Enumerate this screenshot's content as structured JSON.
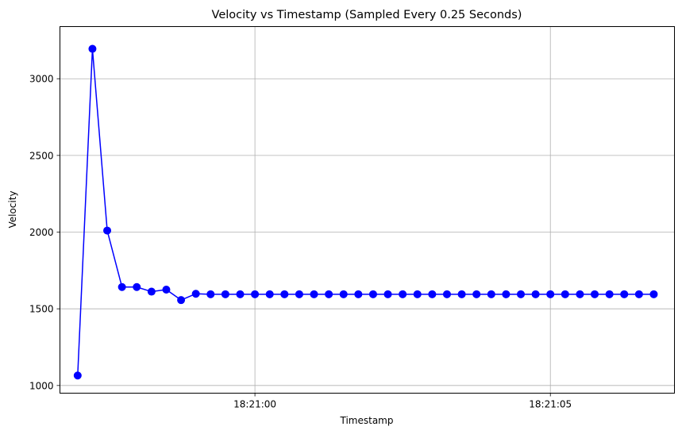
{
  "chart_data": {
    "type": "line",
    "title": "Velocity vs Timestamp (Sampled Every 0.25 Seconds)",
    "xlabel": "Timestamp",
    "ylabel": "Velocity",
    "grid": true,
    "xlim": [
      "18:20:56.70",
      "18:21:07.10"
    ],
    "ylim": [
      950,
      3340
    ],
    "x_ticks": [
      {
        "value": "18:21:00",
        "label": "18:21:00"
      },
      {
        "value": "18:21:05",
        "label": "18:21:05"
      }
    ],
    "y_ticks": [
      {
        "value": 1000,
        "label": "1000"
      },
      {
        "value": 1500,
        "label": "1500"
      },
      {
        "value": 2000,
        "label": "2000"
      },
      {
        "value": 2500,
        "label": "2500"
      },
      {
        "value": 3000,
        "label": "3000"
      }
    ],
    "series": [
      {
        "color": "#0000ff",
        "marker": "circle",
        "x": [
          "18:20:57.00",
          "18:20:57.25",
          "18:20:57.50",
          "18:20:57.75",
          "18:20:58.00",
          "18:20:58.25",
          "18:20:58.50",
          "18:20:58.75",
          "18:20:59.00",
          "18:20:59.25",
          "18:20:59.50",
          "18:20:59.75",
          "18:21:00.00",
          "18:21:00.25",
          "18:21:00.50",
          "18:21:00.75",
          "18:21:01.00",
          "18:21:01.25",
          "18:21:01.50",
          "18:21:01.75",
          "18:21:02.00",
          "18:21:02.25",
          "18:21:02.50",
          "18:21:02.75",
          "18:21:03.00",
          "18:21:03.25",
          "18:21:03.50",
          "18:21:03.75",
          "18:21:04.00",
          "18:21:04.25",
          "18:21:04.50",
          "18:21:04.75",
          "18:21:05.00",
          "18:21:05.25",
          "18:21:05.50",
          "18:21:05.75",
          "18:21:06.00",
          "18:21:06.25",
          "18:21:06.50",
          "18:21:06.75"
        ],
        "values": [
          1065,
          3195,
          2010,
          1642,
          1642,
          1612,
          1625,
          1557,
          1598,
          1595,
          1595,
          1595,
          1595,
          1595,
          1595,
          1595,
          1595,
          1595,
          1595,
          1595,
          1595,
          1595,
          1595,
          1595,
          1595,
          1595,
          1595,
          1595,
          1595,
          1595,
          1595,
          1595,
          1595,
          1595,
          1595,
          1595,
          1595,
          1595,
          1595,
          1595
        ]
      }
    ]
  }
}
